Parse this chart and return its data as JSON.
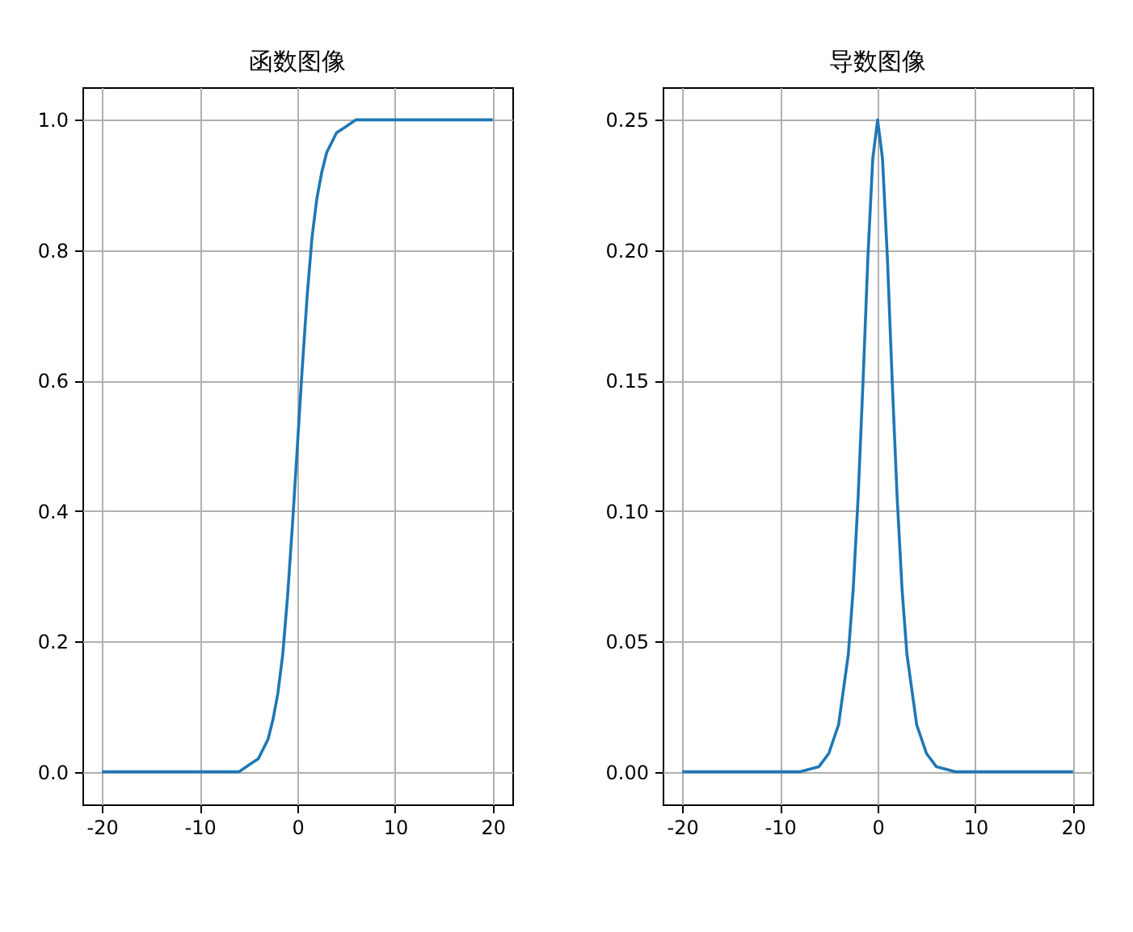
{
  "chart_data": [
    {
      "type": "line",
      "title": "函数图像",
      "x": [
        -20,
        -15,
        -10,
        -8,
        -7,
        -6,
        -5,
        -4,
        -3,
        -2.5,
        -2,
        -1.5,
        -1,
        -0.5,
        0,
        0.5,
        1,
        1.5,
        2,
        2.5,
        3,
        4,
        5,
        6,
        7,
        8,
        10,
        15,
        20
      ],
      "series": [
        {
          "color": "#1f77b4",
          "values": [
            0,
            0,
            0,
            0,
            0,
            0,
            0.01,
            0.02,
            0.05,
            0.08,
            0.12,
            0.18,
            0.27,
            0.38,
            0.5,
            0.62,
            0.73,
            0.82,
            0.88,
            0.92,
            0.95,
            0.98,
            0.99,
            1,
            1,
            1,
            1,
            1,
            1
          ]
        }
      ],
      "xlim": [
        -22,
        22
      ],
      "xticks": [
        -20,
        -10,
        0,
        10,
        20
      ],
      "ylim": [
        -0.05,
        1.05
      ],
      "yticks": [
        {
          "value": 0,
          "label": "0.0"
        },
        {
          "value": 0.2,
          "label": "0.2"
        },
        {
          "value": 0.4,
          "label": "0.4"
        },
        {
          "value": 0.6,
          "label": "0.6"
        },
        {
          "value": 0.8,
          "label": "0.8"
        },
        {
          "value": 1,
          "label": "1.0"
        }
      ],
      "grid": true
    },
    {
      "type": "line",
      "title": "导数图像",
      "x": [
        -20,
        -15,
        -10,
        -8,
        -7,
        -6,
        -5,
        -4,
        -3,
        -2.5,
        -2,
        -1.5,
        -1,
        -0.5,
        0,
        0.5,
        1,
        1.5,
        2,
        2.5,
        3,
        4,
        5,
        6,
        7,
        8,
        10,
        15,
        20
      ],
      "series": [
        {
          "color": "#1f77b4",
          "values": [
            0,
            0,
            0,
            0,
            0.001,
            0.002,
            0.007,
            0.018,
            0.045,
            0.07,
            0.105,
            0.149,
            0.197,
            0.235,
            0.25,
            0.235,
            0.197,
            0.149,
            0.105,
            0.07,
            0.045,
            0.018,
            0.007,
            0.002,
            0.001,
            0,
            0,
            0,
            0
          ]
        }
      ],
      "xlim": [
        -22,
        22
      ],
      "xticks": [
        -20,
        -10,
        0,
        10,
        20
      ],
      "ylim": [
        -0.0125,
        0.2625
      ],
      "yticks": [
        {
          "value": 0,
          "label": "0.00"
        },
        {
          "value": 0.05,
          "label": "0.05"
        },
        {
          "value": 0.1,
          "label": "0.10"
        },
        {
          "value": 0.15,
          "label": "0.15"
        },
        {
          "value": 0.2,
          "label": "0.20"
        },
        {
          "value": 0.25,
          "label": "0.25"
        }
      ],
      "grid": true
    }
  ]
}
